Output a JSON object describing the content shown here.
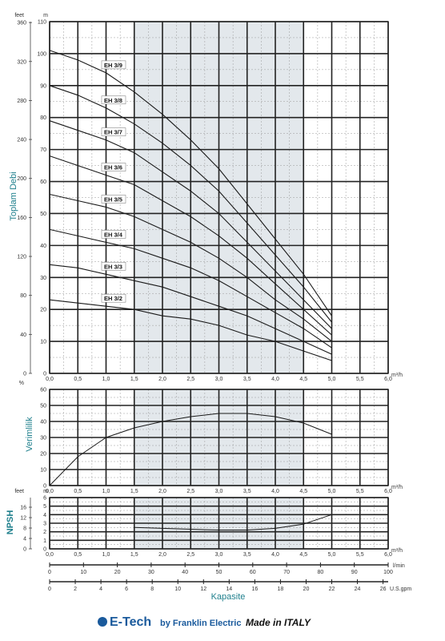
{
  "chart_data": [
    {
      "type": "line",
      "name_id": "head",
      "ylabel": "Toplam Debi",
      "y_unit_left": "feet",
      "y_unit_right": "m",
      "x_unit": "m³/h",
      "xlim": [
        0,
        6
      ],
      "ylim": [
        0,
        110
      ],
      "x_ticks": [
        "0,0",
        "0,5",
        "1,0",
        "1,5",
        "2,0",
        "2,5",
        "3,0",
        "3,5",
        "4,0",
        "4,5",
        "5,0",
        "5,5",
        "6,0"
      ],
      "y_ticks_m": [
        "0",
        "10",
        "20",
        "30",
        "40",
        "50",
        "60",
        "70",
        "80",
        "90",
        "100",
        "110"
      ],
      "y_ticks_feet": [
        "0",
        "40",
        "80",
        "120",
        "160",
        "200",
        "240",
        "280",
        "320",
        "360"
      ],
      "series": [
        {
          "name": "EH 3/9",
          "x": [
            0,
            0.5,
            1,
            1.5,
            2,
            2.5,
            3,
            3.5,
            4,
            4.5,
            5
          ],
          "y": [
            101,
            98,
            94,
            88,
            81,
            73,
            64,
            53,
            42,
            31,
            18
          ]
        },
        {
          "name": "EH 3/8",
          "x": [
            0,
            0.5,
            1,
            1.5,
            2,
            2.5,
            3,
            3.5,
            4,
            4.5,
            5
          ],
          "y": [
            90,
            87,
            83,
            78,
            72,
            65,
            57,
            47,
            37,
            27,
            16
          ]
        },
        {
          "name": "EH 3/7",
          "x": [
            0,
            0.5,
            1,
            1.5,
            2,
            2.5,
            3,
            3.5,
            4,
            4.5,
            5
          ],
          "y": [
            79,
            76,
            73,
            69,
            63,
            57,
            50,
            41,
            32,
            23,
            14
          ]
        },
        {
          "name": "EH 3/6",
          "x": [
            0,
            0.5,
            1,
            1.5,
            2,
            2.5,
            3,
            3.5,
            4,
            4.5,
            5
          ],
          "y": [
            68,
            65,
            62,
            59,
            54,
            49,
            43,
            36,
            28,
            20,
            12
          ]
        },
        {
          "name": "EH 3/5",
          "x": [
            0,
            0.5,
            1,
            1.5,
            2,
            2.5,
            3,
            3.5,
            4,
            4.5,
            5
          ],
          "y": [
            56,
            54,
            52,
            49,
            45,
            41,
            36,
            30,
            23,
            17,
            10
          ]
        },
        {
          "name": "EH 3/4",
          "x": [
            0,
            0.5,
            1,
            1.5,
            2,
            2.5,
            3,
            3.5,
            4,
            4.5,
            5
          ],
          "y": [
            45,
            43,
            41,
            39,
            36,
            33,
            29,
            24,
            19,
            14,
            8
          ]
        },
        {
          "name": "EH 3/3",
          "x": [
            0,
            0.5,
            1,
            1.5,
            2,
            2.5,
            3,
            3.5,
            4,
            4.5,
            5
          ],
          "y": [
            34,
            33,
            31,
            29,
            27,
            24,
            21,
            18,
            14,
            10,
            6
          ]
        },
        {
          "name": "EH 3/2",
          "x": [
            0,
            0.5,
            1,
            1.5,
            2,
            2.5,
            3,
            3.5,
            4,
            4.5,
            5
          ],
          "y": [
            23,
            22,
            21,
            20,
            18,
            17,
            15,
            12,
            10,
            7,
            4
          ]
        }
      ]
    },
    {
      "type": "line",
      "name_id": "efficiency",
      "ylabel": "Verimlilik",
      "y_unit": "%",
      "x_unit": "m³/h",
      "xlim": [
        0,
        6
      ],
      "ylim": [
        0,
        60
      ],
      "x_ticks": [
        "0,0",
        "0,5",
        "1,0",
        "1,5",
        "2,0",
        "2,5",
        "3,0",
        "3,5",
        "4,0",
        "4,5",
        "5,0",
        "5,5",
        "6,0"
      ],
      "y_ticks": [
        "0",
        "10",
        "20",
        "30",
        "40",
        "50",
        "60"
      ],
      "series": [
        {
          "x": [
            0,
            0.5,
            1,
            1.5,
            2,
            2.5,
            3,
            3.5,
            4,
            4.5,
            5
          ],
          "y": [
            0,
            18,
            30,
            36,
            40,
            43,
            45,
            45,
            43,
            39,
            32
          ]
        }
      ]
    },
    {
      "type": "line",
      "name_id": "npsh",
      "ylabel": "NPSH",
      "y_unit_left": "feet",
      "y_unit_right": "m",
      "x_unit": "m³/h",
      "xlim": [
        0,
        6
      ],
      "ylim": [
        0,
        6
      ],
      "x_ticks": [
        "0,0",
        "0,5",
        "1,0",
        "1,5",
        "2,0",
        "2,5",
        "3,0",
        "3,5",
        "4,0",
        "4,5",
        "5,0",
        "5,5",
        "6,0"
      ],
      "y_ticks_m": [
        "0",
        "1",
        "2",
        "3",
        "4",
        "5",
        "6"
      ],
      "y_ticks_feet": [
        "0",
        "4",
        "8",
        "12",
        "16"
      ],
      "series": [
        {
          "x": [
            1.5,
            2,
            2.5,
            3,
            3.5,
            4,
            4.5,
            5
          ],
          "y": [
            2.5,
            2.4,
            2.3,
            2.2,
            2.2,
            2.4,
            2.9,
            4.0
          ]
        }
      ]
    }
  ],
  "extra_axes": {
    "title": "Kapasite",
    "lmin_unit": "l/min",
    "lmin_ticks": [
      "0",
      "10",
      "20",
      "30",
      "40",
      "50",
      "60",
      "70",
      "80",
      "90",
      "100"
    ],
    "gpm_unit": "U.S.gpm",
    "gpm_ticks": [
      "0",
      "2",
      "4",
      "6",
      "8",
      "10",
      "12",
      "14",
      "16",
      "18",
      "20",
      "22",
      "24",
      "26"
    ]
  },
  "footer": {
    "logo": "E-Tech",
    "by": "by Franklin Electric",
    "made": "Made in ITALY"
  },
  "colors": {
    "accent": "#1e7f8c",
    "shade": "#e3e8ec",
    "logo": "#1a5a9c"
  }
}
